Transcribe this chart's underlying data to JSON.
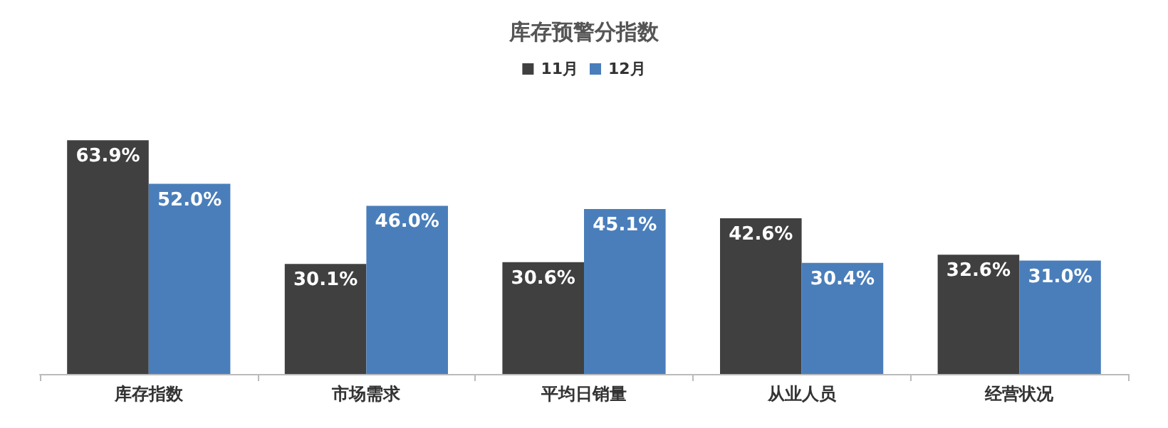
{
  "chart_data": {
    "type": "bar",
    "title": "库存预警分指数",
    "categories": [
      "库存指数",
      "市场需求",
      "平均日销量",
      "从业人员",
      "经营状况"
    ],
    "series": [
      {
        "name": "11月",
        "color": "#404040",
        "values": [
          63.9,
          30.1,
          30.6,
          42.6,
          32.6
        ],
        "value_labels": [
          "63.9%",
          "30.1%",
          "30.6%",
          "42.6%",
          "32.6%"
        ]
      },
      {
        "name": "12月",
        "color": "#4a7ebb",
        "values": [
          52.0,
          46.0,
          45.1,
          30.4,
          31.0
        ],
        "value_labels": [
          "52.0%",
          "46.0%",
          "45.1%",
          "30.4%",
          "31.0%"
        ]
      }
    ],
    "legend": "top"
  }
}
